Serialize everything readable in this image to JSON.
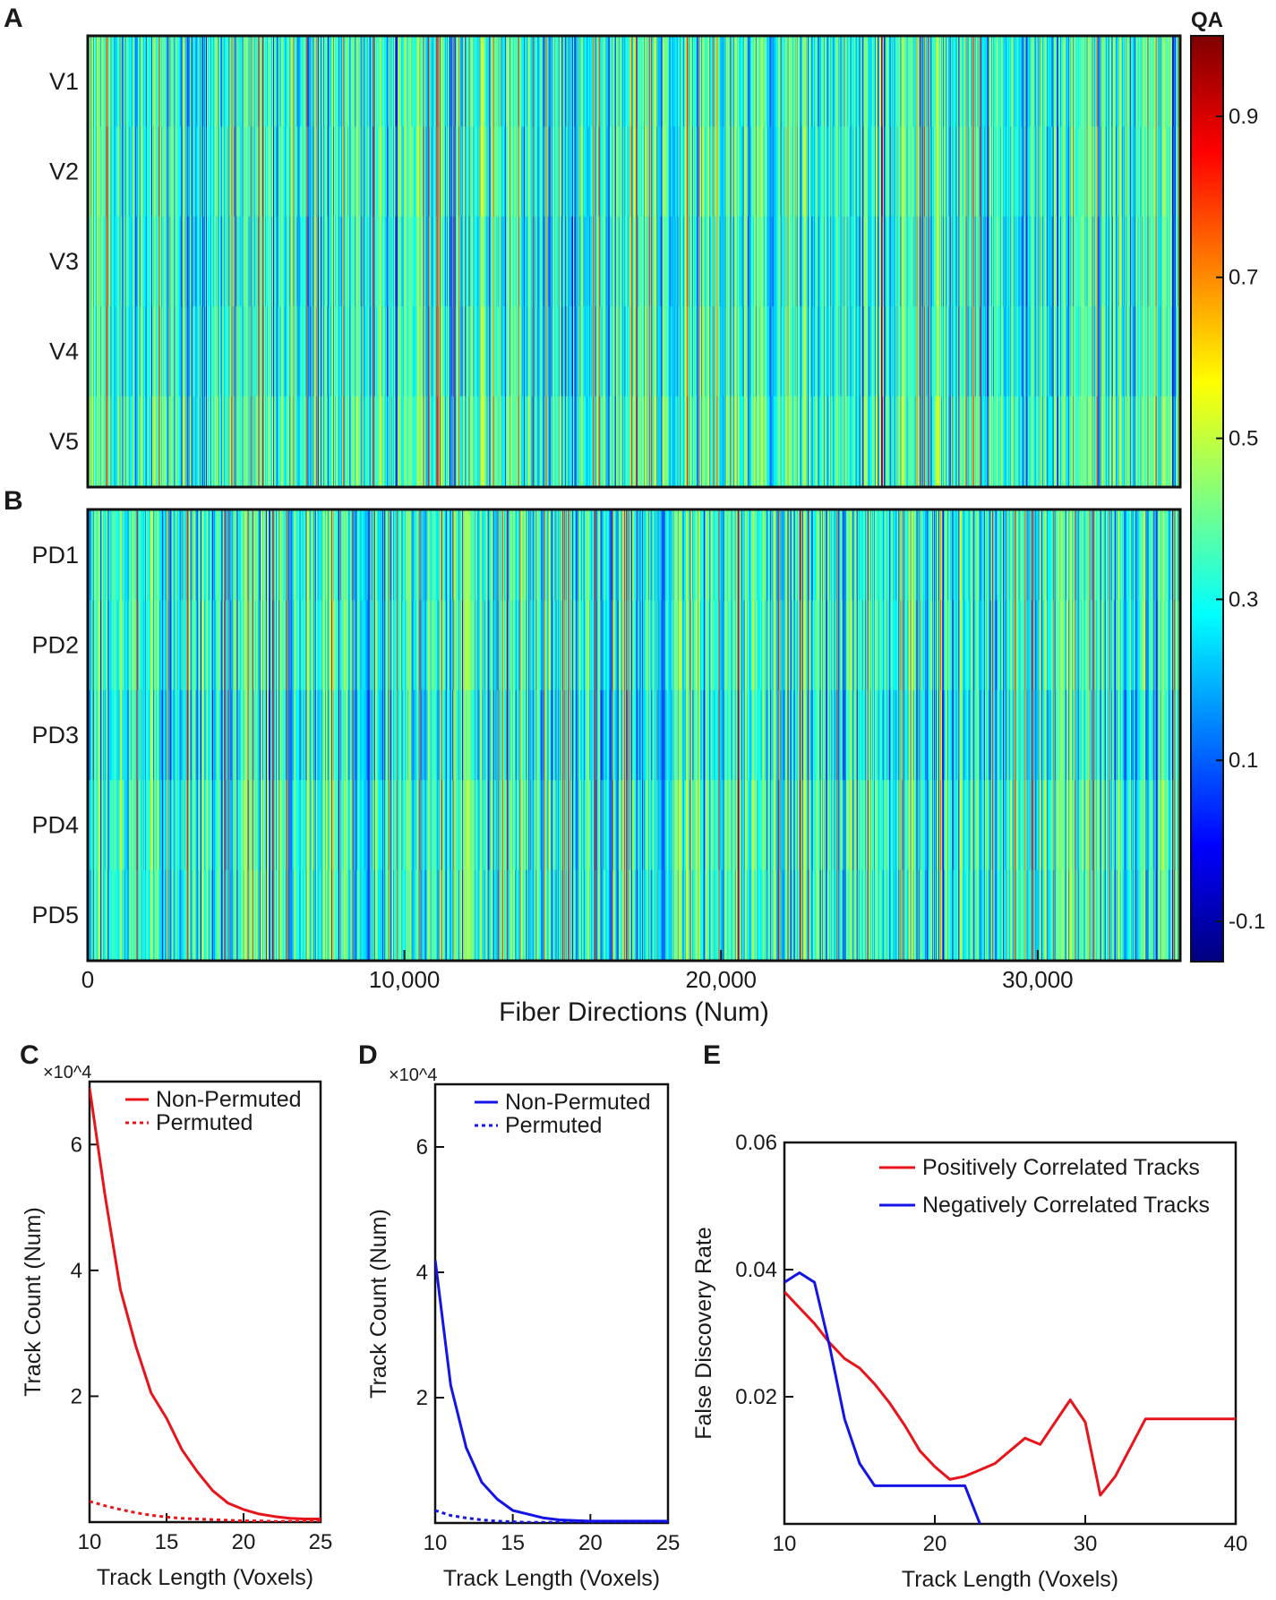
{
  "chart_data": [
    {
      "panel": "A",
      "type": "heatmap",
      "rows": [
        "V1",
        "V2",
        "V3",
        "V4",
        "V5"
      ],
      "xlabel": "Fiber Directions (Num)",
      "xlim": [
        0,
        34500
      ],
      "xticks": [
        0,
        10000,
        20000,
        30000
      ],
      "xtick_labels": [
        "0",
        "10,000",
        "20,000",
        "30,000"
      ],
      "colorbar": {
        "title": "QA",
        "range": [
          -0.15,
          1.0
        ],
        "ticks": [
          -0.1,
          0.1,
          0.3,
          0.5,
          0.7,
          0.9
        ],
        "tick_labels": [
          "-0.1",
          "0.1",
          "0.3",
          "0.5",
          "0.7",
          "0.9"
        ],
        "colormap": "jet"
      },
      "typical_value": 0.33
    },
    {
      "panel": "B",
      "type": "heatmap",
      "rows": [
        "PD1",
        "PD2",
        "PD3",
        "PD4",
        "PD5"
      ],
      "xlabel": "Fiber Directions (Num)",
      "xlim": [
        0,
        34500
      ],
      "xticks": [
        0,
        10000,
        20000,
        30000
      ],
      "xtick_labels": [
        "0",
        "10,000",
        "20,000",
        "30,000"
      ],
      "colorbar": "shared with panel A",
      "typical_value": 0.33
    },
    {
      "panel": "C",
      "type": "line",
      "xlabel": "Track Length (Voxels)",
      "ylabel": "Track Count (Num)",
      "y_multiplier": "×10^4",
      "xlim": [
        10,
        25
      ],
      "ylim": [
        0,
        7
      ],
      "xticks": [
        10,
        15,
        20,
        25
      ],
      "yticks": [
        2,
        4,
        6
      ],
      "legend": "top-right",
      "x": [
        10,
        11,
        12,
        13,
        14,
        15,
        16,
        17,
        18,
        19,
        20,
        21,
        22,
        23,
        24,
        25
      ],
      "series": [
        {
          "name": "Non-Permuted",
          "color": "#e8141b",
          "style": "solid",
          "values": [
            6.9,
            5.2,
            3.7,
            2.8,
            2.05,
            1.65,
            1.15,
            0.8,
            0.5,
            0.3,
            0.2,
            0.13,
            0.09,
            0.06,
            0.05,
            0.05
          ]
        },
        {
          "name": "Permuted",
          "color": "#e8141b",
          "style": "dotted",
          "values": [
            0.33,
            0.26,
            0.2,
            0.15,
            0.11,
            0.08,
            0.06,
            0.05,
            0.04,
            0.03,
            0.02,
            0.02,
            0.01,
            0.01,
            0.01,
            0.01
          ]
        }
      ]
    },
    {
      "panel": "D",
      "type": "line",
      "xlabel": "Track Length (Voxels)",
      "ylabel": "Track Count (Num)",
      "y_multiplier": "×10^4",
      "xlim": [
        10,
        25
      ],
      "ylim": [
        0,
        7
      ],
      "xticks": [
        10,
        15,
        20,
        25
      ],
      "yticks": [
        2,
        4,
        6
      ],
      "legend": "top-right",
      "x": [
        10,
        11,
        12,
        13,
        14,
        15,
        16,
        17,
        18,
        19,
        20,
        21,
        22,
        23,
        24,
        25
      ],
      "series": [
        {
          "name": "Non-Permuted",
          "color": "#1414e6",
          "style": "solid",
          "values": [
            4.2,
            2.2,
            1.2,
            0.65,
            0.38,
            0.2,
            0.14,
            0.08,
            0.05,
            0.04,
            0.03,
            0.03,
            0.03,
            0.03,
            0.03,
            0.03
          ]
        },
        {
          "name": "Permuted",
          "color": "#1414e6",
          "style": "dotted",
          "values": [
            0.2,
            0.12,
            0.08,
            0.05,
            0.03,
            0.02,
            0.01,
            0.01,
            0.01,
            0.01,
            0.01,
            0.01,
            0.01,
            0.01,
            0.01,
            0.01
          ]
        }
      ]
    },
    {
      "panel": "E",
      "type": "line",
      "xlabel": "Track Length (Voxels)",
      "ylabel": "False Discovery Rate",
      "xlim": [
        10,
        40
      ],
      "ylim": [
        0,
        0.06
      ],
      "xticks": [
        10,
        20,
        30,
        40
      ],
      "yticks": [
        0.02,
        0.04,
        0.06
      ],
      "ytick_labels": [
        "0.02",
        "0.04",
        "0.06"
      ],
      "legend": "top-right",
      "series": [
        {
          "name": "Positively Correlated Tracks",
          "color": "#e8141b",
          "x": [
            10,
            11,
            12,
            13,
            14,
            15,
            16,
            17,
            18,
            19,
            20,
            21,
            22,
            23,
            24,
            25,
            26,
            27,
            28,
            29,
            30,
            31,
            32,
            33,
            34,
            35,
            36,
            37,
            38,
            39,
            40
          ],
          "values": [
            0.0365,
            0.034,
            0.0315,
            0.0285,
            0.026,
            0.0245,
            0.022,
            0.019,
            0.0155,
            0.0115,
            0.009,
            0.007,
            0.0075,
            0.0085,
            0.0095,
            0.0115,
            0.0135,
            0.0125,
            0.016,
            0.0195,
            0.016,
            0.0045,
            0.0075,
            0.012,
            0.0165,
            0.0165,
            0.0165,
            0.0165,
            0.0165,
            0.0165,
            0.0165
          ]
        },
        {
          "name": "Negatively Correlated Tracks",
          "color": "#1414e6",
          "x": [
            10,
            11,
            12,
            13,
            14,
            15,
            16,
            17,
            18,
            19,
            20,
            21,
            22,
            23
          ],
          "values": [
            0.038,
            0.0395,
            0.038,
            0.028,
            0.0165,
            0.0095,
            0.006,
            0.006,
            0.006,
            0.006,
            0.006,
            0.006,
            0.006,
            0.0
          ]
        }
      ]
    }
  ],
  "panel_labels": [
    "A",
    "B",
    "C",
    "D",
    "E"
  ]
}
